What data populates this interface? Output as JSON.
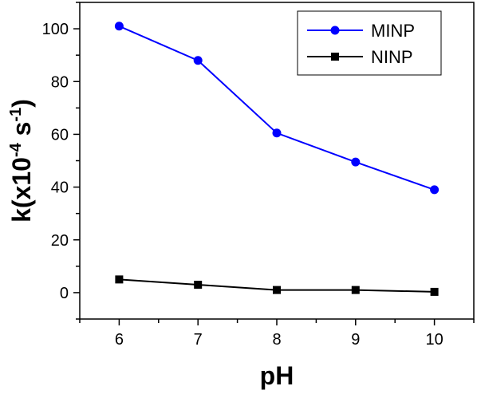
{
  "chart_data": {
    "type": "line",
    "title": "",
    "xlabel": "pH",
    "ylabel": {
      "prefix": "k(x10",
      "sup1": "-4",
      "middle": " s",
      "sup2": "-1",
      "suffix": ")"
    },
    "x": [
      6,
      7,
      8,
      9,
      10
    ],
    "xlim": [
      5.5,
      10.5
    ],
    "ylim": [
      -10,
      110
    ],
    "xticks": [
      6,
      7,
      8,
      9,
      10
    ],
    "yticks": [
      0,
      20,
      40,
      60,
      80,
      100
    ],
    "grid": false,
    "legend_position": "top-right",
    "series": [
      {
        "name": "MINP",
        "marker": "circle",
        "color": "#0000ff",
        "values": [
          101,
          88,
          60.5,
          49.5,
          39
        ]
      },
      {
        "name": "NINP",
        "marker": "square",
        "color": "#000000",
        "values": [
          5,
          3,
          1,
          1,
          0.3
        ]
      }
    ]
  }
}
